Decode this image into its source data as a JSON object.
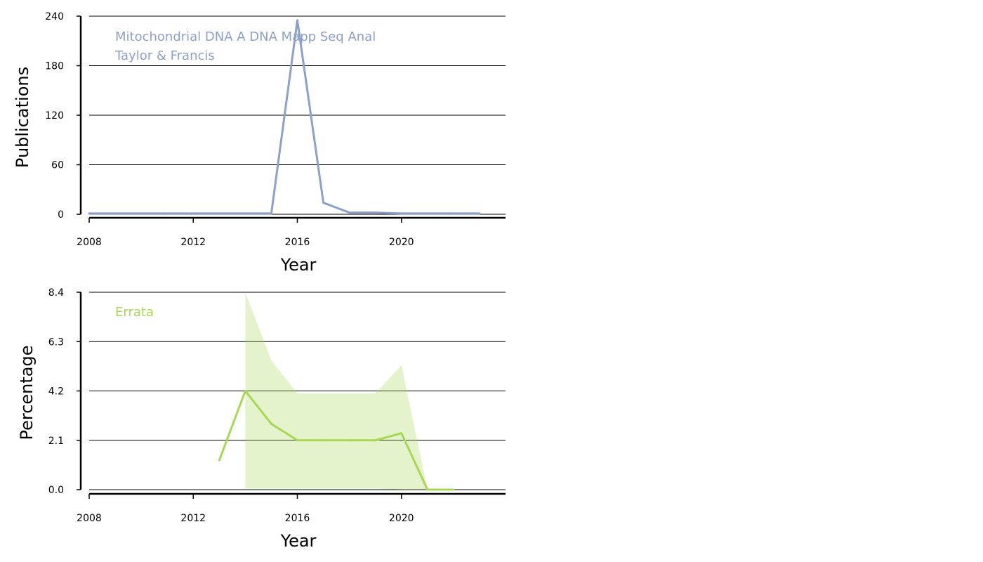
{
  "chart_data": [
    {
      "type": "line",
      "xlabel": "Year",
      "ylabel": "Publications",
      "xlim": [
        2008,
        2024
      ],
      "ylim": [
        0,
        240
      ],
      "xticks": [
        "2008",
        "2012",
        "2016",
        "2020"
      ],
      "yticks": [
        "0",
        "60",
        "120",
        "180",
        "240"
      ],
      "grid": "horizontal",
      "annotation_lines": [
        "Mitochondrial DNA A DNA Mapp Seq Anal",
        "Taylor & Francis"
      ],
      "color": "#8da0cb",
      "series": [
        {
          "x": [
            2008,
            2009,
            2010,
            2011,
            2012,
            2013,
            2014,
            2015,
            2016,
            2017,
            2018,
            2019,
            2020,
            2021,
            2022,
            2023
          ],
          "values": [
            1,
            1,
            1,
            1,
            1,
            1,
            1,
            1,
            235,
            14,
            2,
            2,
            1,
            1,
            1,
            1
          ]
        }
      ]
    },
    {
      "type": "area",
      "xlabel": "Year",
      "ylabel": "Percentage",
      "xlim": [
        2008,
        2024
      ],
      "ylim": [
        0,
        8.4
      ],
      "xticks": [
        "2008",
        "2012",
        "2016",
        "2020"
      ],
      "yticks": [
        "0.0",
        "2.1",
        "4.2",
        "6.3",
        "8.4"
      ],
      "grid": "horizontal",
      "annotation_lines": [
        "Errata"
      ],
      "color": "#a6d854",
      "series": [
        {
          "x": [
            2013,
            2014,
            2015,
            2016,
            2017,
            2018,
            2019,
            2020,
            2021,
            2022
          ],
          "values": [
            1.25,
            4.2,
            2.8,
            2.1,
            2.1,
            2.1,
            2.1,
            2.4,
            0.0,
            0.0
          ],
          "upper": [
            null,
            8.4,
            5.5,
            4.1,
            4.1,
            4.1,
            4.1,
            5.3,
            0.0,
            null
          ],
          "lower": [
            null,
            0.05,
            0.05,
            0.05,
            0.05,
            0.05,
            0.05,
            0.0,
            0.0,
            null
          ]
        }
      ]
    }
  ]
}
